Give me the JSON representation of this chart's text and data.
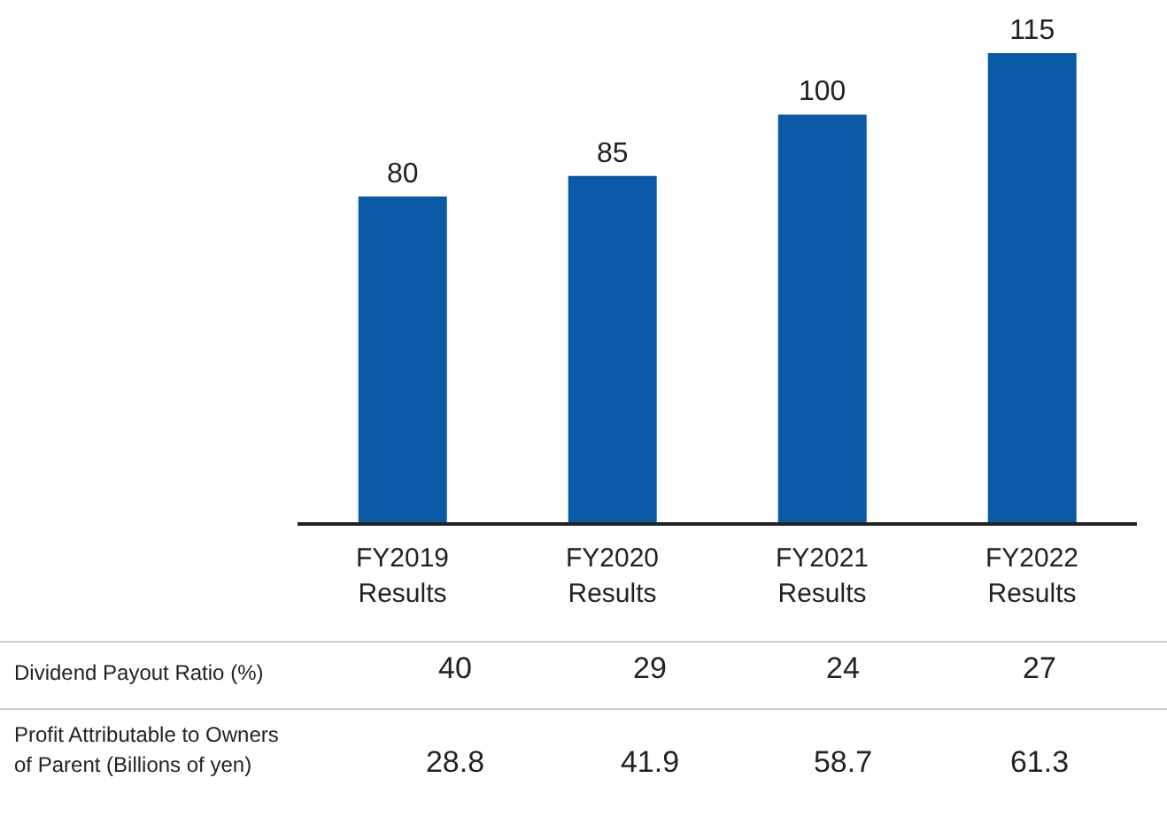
{
  "chart_data": {
    "type": "bar",
    "categories": [
      "FY2019 Results",
      "FY2020 Results",
      "FY2021 Results",
      "FY2022 Results"
    ],
    "values": [
      80,
      85,
      100,
      115
    ],
    "color": "#0a5aa8",
    "data_labels": true,
    "annotations": [
      "Dividend Payout Ratio (%)",
      "40",
      "29",
      "24",
      "27",
      "Profit Attributable to Owners of Parent (Billions of yen)",
      "28.8",
      "41.9",
      "58.7",
      "61.3"
    ]
  }
}
